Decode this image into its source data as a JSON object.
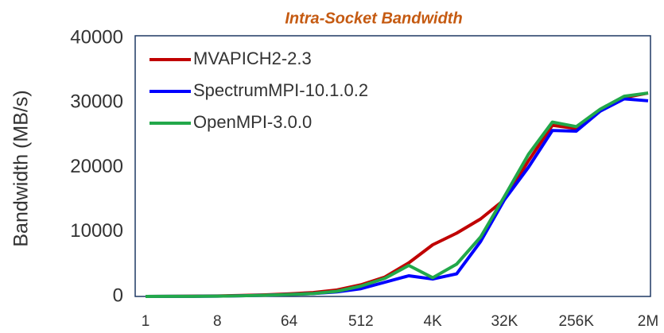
{
  "chart_data": {
    "type": "line",
    "title": "Intra-Socket Bandwidth",
    "y_label": "Bandwidth (MB/s)",
    "categories": [
      "1",
      null,
      null,
      "8",
      null,
      null,
      "64",
      null,
      null,
      "512",
      null,
      null,
      "4K",
      null,
      null,
      "32K",
      null,
      null,
      "256K",
      null,
      null,
      "2M"
    ],
    "series": [
      {
        "name": "MVAPICH2-2.3",
        "color": "#c00000",
        "values": [
          0,
          20,
          40,
          80,
          150,
          250,
          400,
          600,
          1000,
          1800,
          3000,
          5200,
          8000,
          9800,
          12000,
          15000,
          21000,
          26500,
          26000,
          28800,
          30800,
          31500
        ]
      },
      {
        "name": "SpectrumMPI-10.1.0.2",
        "color": "#0000ff",
        "values": [
          0,
          10,
          20,
          50,
          100,
          180,
          300,
          450,
          700,
          1200,
          2200,
          3200,
          2700,
          3500,
          8500,
          15000,
          20000,
          25700,
          25600,
          28700,
          30600,
          30300
        ]
      },
      {
        "name": "OpenMPI-3.0.0",
        "color": "#22a84a",
        "values": [
          0,
          10,
          20,
          50,
          100,
          180,
          300,
          450,
          800,
          1600,
          2800,
          4800,
          2900,
          5000,
          9200,
          15500,
          22000,
          27000,
          26300,
          29000,
          31000,
          31500
        ]
      }
    ],
    "ylim": [
      0,
      40000
    ],
    "yticks": [
      0,
      10000,
      20000,
      30000,
      40000
    ],
    "grid": false,
    "legend": "top-left"
  }
}
